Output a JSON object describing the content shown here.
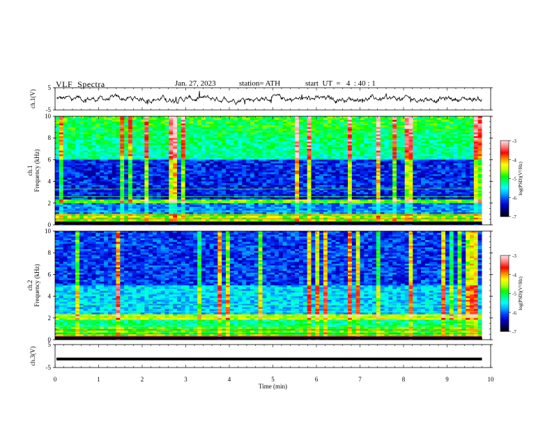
{
  "header": {
    "title": "VLF  Spectra",
    "date": "Jan. 27, 2023",
    "station": "station= ATH",
    "start": "start  UT  =   4  : 40 : 1"
  },
  "chart_data": [
    {
      "type": "line",
      "panel": "ch1-waveform",
      "ylabel": "ch.1(V)",
      "ylim": [
        -5,
        5
      ],
      "yticks": [
        "5",
        "-5"
      ],
      "x_range_min": [
        0,
        9.8
      ],
      "baseline_v": 0,
      "noise_amplitude_v": 1.5
    },
    {
      "type": "heatmap",
      "panel": "ch1-spectrogram",
      "ylabel": "ch.1\nFrequency  (kHz)",
      "ylim": [
        0,
        10
      ],
      "yticks": [
        "0",
        "2",
        "4",
        "6",
        "8",
        "10"
      ],
      "x_range_min": [
        0,
        9.8
      ],
      "colorbar": {
        "label": "log(PSD)(V²/Hz)",
        "range": [
          -7,
          -3
        ],
        "ticks": [
          "-3",
          "-4",
          "-5",
          "-6",
          "-7"
        ]
      }
    },
    {
      "type": "heatmap",
      "panel": "ch2-spectrogram",
      "ylabel": "ch.2\nFrequency  (kHz)",
      "ylim": [
        0,
        10
      ],
      "yticks": [
        "0",
        "2",
        "4",
        "6",
        "8",
        "10"
      ],
      "x_range_min": [
        0,
        9.8
      ],
      "colorbar": {
        "label": "log(PSD)(V²/Hz)",
        "range": [
          -7,
          -3
        ],
        "ticks": [
          "-3",
          "-4",
          "-5",
          "-6",
          "-7"
        ]
      }
    },
    {
      "type": "line",
      "panel": "ch3-waveform",
      "ylabel": "ch.3(V)",
      "ylim": [
        -5,
        5
      ],
      "yticks": [
        "5",
        "-5"
      ],
      "x_range_min": [
        0,
        9.8
      ],
      "constant_value_v": -1.3
    }
  ],
  "x_axis": {
    "label": "Time  (min)",
    "ticks": [
      "0",
      "1",
      "2",
      "3",
      "4",
      "5",
      "6",
      "7",
      "8",
      "9",
      "10"
    ],
    "xlim": [
      0,
      10
    ]
  },
  "colors": {
    "deep_blue": "#00008f",
    "blue": "#0000ff",
    "cyan": "#00ffff",
    "green": "#00ff00",
    "yellow": "#ffff00",
    "red": "#ff0000",
    "black": "#000000"
  }
}
